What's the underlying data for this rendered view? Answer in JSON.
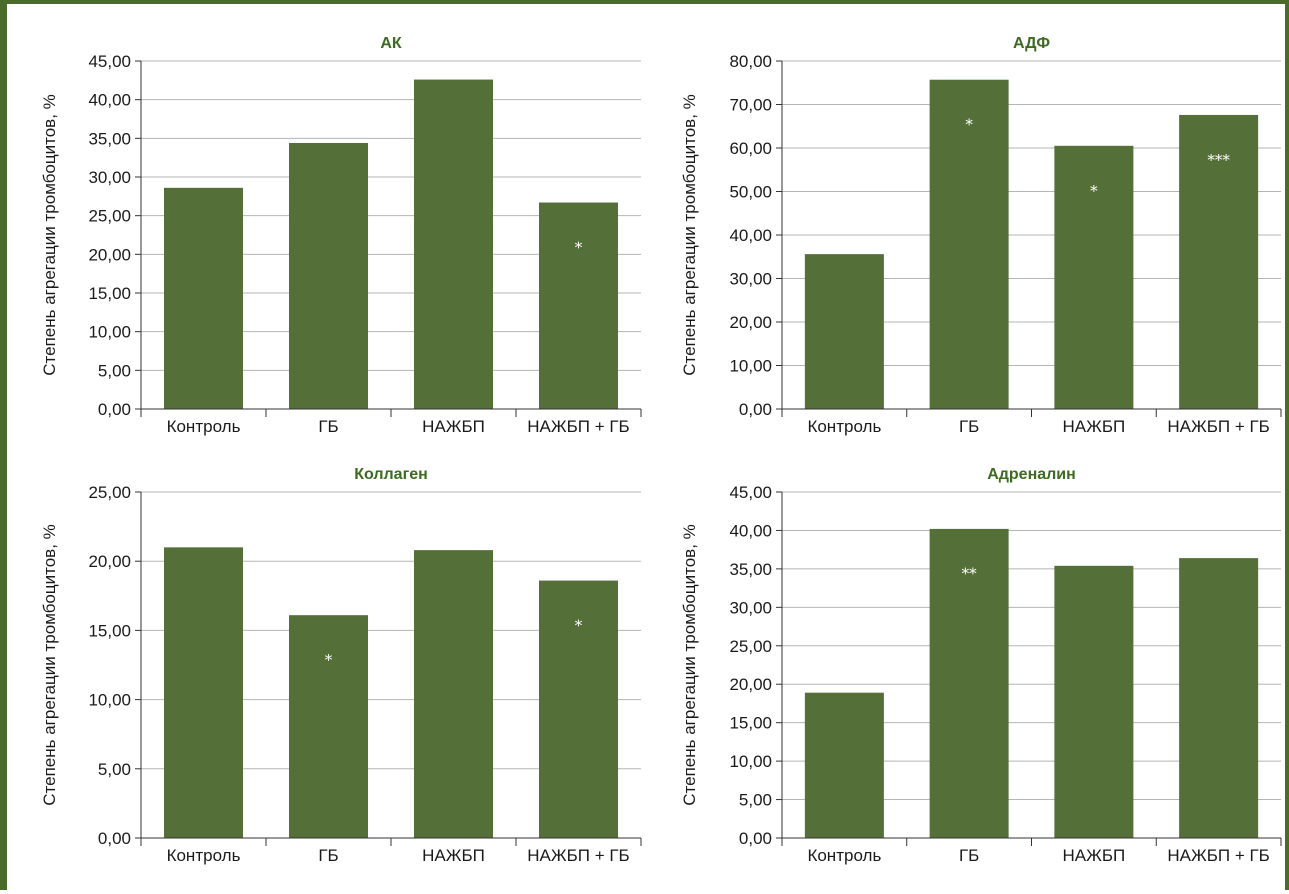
{
  "colors": {
    "bar": "#556f39",
    "title": "#3d6b22",
    "frame": "#4a6b2a",
    "grid": "#b5b5b5",
    "axis": "#333333",
    "annotation": "#ffffff"
  },
  "chart_data": [
    {
      "type": "bar",
      "title": "АК",
      "ylabel": "Степень агрегации тромбоцитов, %",
      "categories": [
        "Контроль",
        "ГБ",
        "НАЖБП",
        "НАЖБП + ГБ"
      ],
      "values": [
        28.6,
        34.4,
        42.6,
        26.7
      ],
      "annotations": [
        "",
        "",
        "",
        "*"
      ],
      "ylim": [
        0,
        45
      ],
      "yticks": [
        "0,00",
        "5,00",
        "10,00",
        "15,00",
        "20,00",
        "25,00",
        "30,00",
        "35,00",
        "40,00",
        "45,00"
      ],
      "grid": true
    },
    {
      "type": "bar",
      "title": "АДФ",
      "ylabel": "Степень агрегации тромбоцитов, %",
      "categories": [
        "Контроль",
        "ГБ",
        "НАЖБП",
        "НАЖБП + ГБ"
      ],
      "values": [
        35.6,
        75.7,
        60.5,
        67.6
      ],
      "annotations": [
        "",
        "*",
        "*",
        "***"
      ],
      "ylim": [
        0,
        80
      ],
      "yticks": [
        "0,00",
        "10,00",
        "20,00",
        "30,00",
        "40,00",
        "50,00",
        "60,00",
        "70,00",
        "80,00"
      ],
      "grid": true
    },
    {
      "type": "bar",
      "title": "Коллаген",
      "ylabel": "Степень агрегации тромбоцитов, %",
      "categories": [
        "Контроль",
        "ГБ",
        "НАЖБП",
        "НАЖБП + ГБ"
      ],
      "values": [
        21.0,
        16.1,
        20.8,
        18.6
      ],
      "annotations": [
        "",
        "*",
        "",
        "*"
      ],
      "ylim": [
        0,
        25
      ],
      "yticks": [
        "0,00",
        "5,00",
        "10,00",
        "15,00",
        "20,00",
        "25,00"
      ],
      "grid": true
    },
    {
      "type": "bar",
      "title": "Адреналин",
      "ylabel": "Степень агрегации тромбоцитов, %",
      "categories": [
        "Контроль",
        "ГБ",
        "НАЖБП",
        "НАЖБП + ГБ"
      ],
      "values": [
        18.9,
        40.2,
        35.4,
        36.4
      ],
      "annotations": [
        "",
        "**",
        "",
        ""
      ],
      "ylim": [
        0,
        45
      ],
      "yticks": [
        "0,00",
        "5,00",
        "10,00",
        "15,00",
        "20,00",
        "25,00",
        "30,00",
        "35,00",
        "40,00",
        "45,00"
      ],
      "grid": true
    }
  ]
}
